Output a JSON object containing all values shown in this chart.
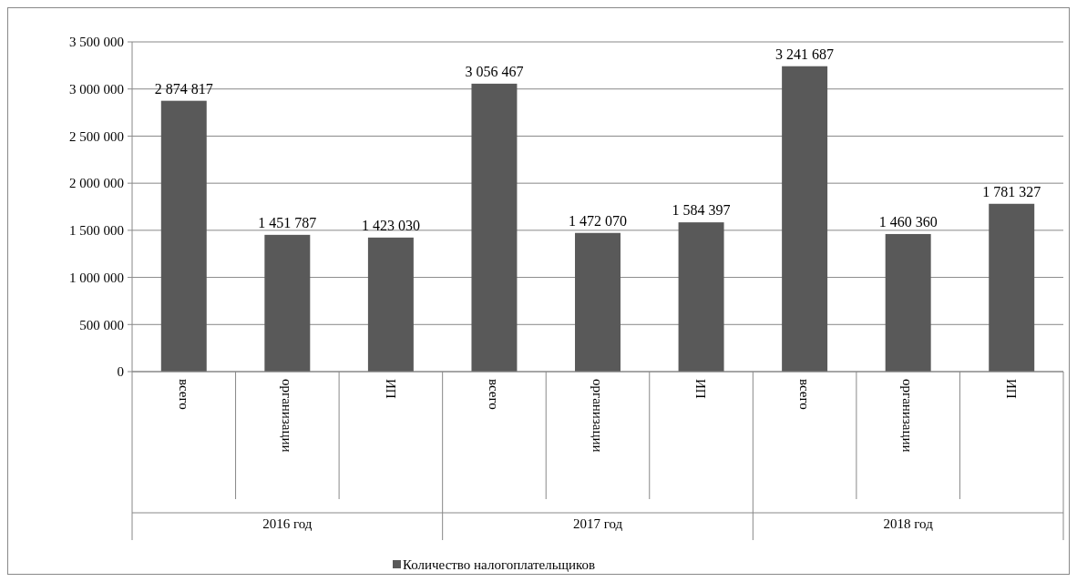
{
  "chart_data": {
    "type": "bar",
    "categories": [
      "всего",
      "организации",
      "ИП",
      "всего",
      "организации",
      "ИП",
      "всего",
      "организации",
      "ИП"
    ],
    "annotations": [
      "2016 год",
      "2017 год",
      "2018 год"
    ],
    "series": [
      {
        "name": "Количество налогоплательщиков",
        "color": "#595959",
        "values": [
          2874817,
          1451787,
          1423030,
          3056467,
          1472070,
          1584397,
          3241687,
          1460360,
          1781327
        ],
        "value_labels": [
          "2 874 817",
          "1 451 787",
          "1 423 030",
          "3 056 467",
          "1 472 070",
          "1 584 397",
          "3 241 687",
          "1 460 360",
          "1 781 327"
        ]
      }
    ],
    "ylim": [
      0,
      3500000
    ],
    "yticks": [
      {
        "value": 0,
        "label": "0"
      },
      {
        "value": 500000,
        "label": "500 000"
      },
      {
        "value": 1000000,
        "label": "1 000 000"
      },
      {
        "value": 1500000,
        "label": "1 500 000"
      },
      {
        "value": 2000000,
        "label": "2 000 000"
      },
      {
        "value": 2500000,
        "label": "2 500 000"
      },
      {
        "value": 3000000,
        "label": "3 000 000"
      },
      {
        "value": 3500000,
        "label": "3 500 000"
      }
    ],
    "grid": "y",
    "legend": "bottom"
  }
}
